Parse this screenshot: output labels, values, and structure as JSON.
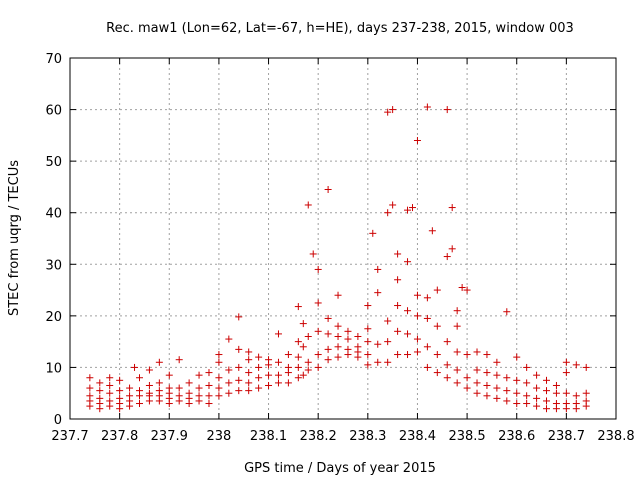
{
  "chart_data": {
    "type": "scatter",
    "title": "Rec. maw1 (Lon=62, Lat=-67, h=HE), days 237-238, 2015, window 003",
    "xlabel": "GPS time / Days of year 2015",
    "ylabel": "STEC from uqrg / TECUs",
    "xlim": [
      237.7,
      238.8
    ],
    "ylim": [
      0,
      70
    ],
    "x_ticks": [
      "237.7",
      "237.8",
      "237.9",
      "238",
      "238.1",
      "238.2",
      "238.3",
      "238.4",
      "238.5",
      "238.6",
      "238.7",
      "238.8"
    ],
    "y_ticks": [
      "0",
      "10",
      "20",
      "30",
      "40",
      "50",
      "60",
      "70"
    ],
    "grid": true,
    "marker": "+",
    "color": "#cc0000",
    "points": [
      [
        237.74,
        2.5
      ],
      [
        237.74,
        3.5
      ],
      [
        237.74,
        4.5
      ],
      [
        237.74,
        6.0
      ],
      [
        237.74,
        8.0
      ],
      [
        237.76,
        2.0
      ],
      [
        237.76,
        3.0
      ],
      [
        237.76,
        4.0
      ],
      [
        237.76,
        5.5
      ],
      [
        237.76,
        7.0
      ],
      [
        237.78,
        2.5
      ],
      [
        237.78,
        3.5
      ],
      [
        237.78,
        5.0
      ],
      [
        237.78,
        6.5
      ],
      [
        237.78,
        8.0
      ],
      [
        237.8,
        2.0
      ],
      [
        237.8,
        3.0
      ],
      [
        237.8,
        4.0
      ],
      [
        237.8,
        5.5
      ],
      [
        237.8,
        7.5
      ],
      [
        237.82,
        2.5
      ],
      [
        237.82,
        3.5
      ],
      [
        237.82,
        4.5
      ],
      [
        237.82,
        6.0
      ],
      [
        237.83,
        10.0
      ],
      [
        237.84,
        3.0
      ],
      [
        237.84,
        4.5
      ],
      [
        237.84,
        5.5
      ],
      [
        237.84,
        8.0
      ],
      [
        237.86,
        3.5
      ],
      [
        237.86,
        4.5
      ],
      [
        237.86,
        5.0
      ],
      [
        237.86,
        6.5
      ],
      [
        237.86,
        9.5
      ],
      [
        237.88,
        3.5
      ],
      [
        237.88,
        4.5
      ],
      [
        237.88,
        5.5
      ],
      [
        237.88,
        7.0
      ],
      [
        237.88,
        11.0
      ],
      [
        237.9,
        3.0
      ],
      [
        237.9,
        4.0
      ],
      [
        237.9,
        5.0
      ],
      [
        237.9,
        6.0
      ],
      [
        237.9,
        8.5
      ],
      [
        237.92,
        3.5
      ],
      [
        237.92,
        4.5
      ],
      [
        237.92,
        6.0
      ],
      [
        237.92,
        11.5
      ],
      [
        237.94,
        3.0
      ],
      [
        237.94,
        4.0
      ],
      [
        237.94,
        5.0
      ],
      [
        237.94,
        7.0
      ],
      [
        237.96,
        3.5
      ],
      [
        237.96,
        4.5
      ],
      [
        237.96,
        6.0
      ],
      [
        237.96,
        8.5
      ],
      [
        237.98,
        3.0
      ],
      [
        237.98,
        4.5
      ],
      [
        237.98,
        6.5
      ],
      [
        237.98,
        9.0
      ],
      [
        238.0,
        4.5
      ],
      [
        238.0,
        6.0
      ],
      [
        238.0,
        8.0
      ],
      [
        238.0,
        11.0
      ],
      [
        238.0,
        12.5
      ],
      [
        238.02,
        5.0
      ],
      [
        238.02,
        7.0
      ],
      [
        238.02,
        9.5
      ],
      [
        238.02,
        15.5
      ],
      [
        238.04,
        5.5
      ],
      [
        238.04,
        7.5
      ],
      [
        238.04,
        10.0
      ],
      [
        238.04,
        13.5
      ],
      [
        238.04,
        19.8
      ],
      [
        238.06,
        5.5
      ],
      [
        238.06,
        7.0
      ],
      [
        238.06,
        9.0
      ],
      [
        238.06,
        11.5
      ],
      [
        238.06,
        13.0
      ],
      [
        238.08,
        6.0
      ],
      [
        238.08,
        8.0
      ],
      [
        238.08,
        10.0
      ],
      [
        238.08,
        12.0
      ],
      [
        238.1,
        6.5
      ],
      [
        238.1,
        8.5
      ],
      [
        238.1,
        10.5
      ],
      [
        238.1,
        11.5
      ],
      [
        238.12,
        7.0
      ],
      [
        238.12,
        8.5
      ],
      [
        238.12,
        11.0
      ],
      [
        238.12,
        16.5
      ],
      [
        238.14,
        7.0
      ],
      [
        238.14,
        9.0
      ],
      [
        238.14,
        10.0
      ],
      [
        238.14,
        12.5
      ],
      [
        238.16,
        8.0
      ],
      [
        238.16,
        10.0
      ],
      [
        238.16,
        12.0
      ],
      [
        238.16,
        15.0
      ],
      [
        238.16,
        21.8
      ],
      [
        238.17,
        8.5
      ],
      [
        238.17,
        14.0
      ],
      [
        238.17,
        18.5
      ],
      [
        238.18,
        41.5
      ],
      [
        238.18,
        9.5
      ],
      [
        238.18,
        11.0
      ],
      [
        238.18,
        16.0
      ],
      [
        238.19,
        32.0
      ],
      [
        238.2,
        10.0
      ],
      [
        238.2,
        12.5
      ],
      [
        238.2,
        17.0
      ],
      [
        238.2,
        22.5
      ],
      [
        238.2,
        29.0
      ],
      [
        238.22,
        11.5
      ],
      [
        238.22,
        13.5
      ],
      [
        238.22,
        16.5
      ],
      [
        238.22,
        19.5
      ],
      [
        238.22,
        44.5
      ],
      [
        238.24,
        12.0
      ],
      [
        238.24,
        14.0
      ],
      [
        238.24,
        16.0
      ],
      [
        238.24,
        18.0
      ],
      [
        238.24,
        24.0
      ],
      [
        238.26,
        12.5
      ],
      [
        238.26,
        13.5
      ],
      [
        238.26,
        15.5
      ],
      [
        238.26,
        17.0
      ],
      [
        238.28,
        12.0
      ],
      [
        238.28,
        13.0
      ],
      [
        238.28,
        14.0
      ],
      [
        238.28,
        16.0
      ],
      [
        238.3,
        10.5
      ],
      [
        238.3,
        12.5
      ],
      [
        238.3,
        15.0
      ],
      [
        238.3,
        17.5
      ],
      [
        238.3,
        22.0
      ],
      [
        238.31,
        36.0
      ],
      [
        238.32,
        11.0
      ],
      [
        238.32,
        14.5
      ],
      [
        238.32,
        24.5
      ],
      [
        238.32,
        29.0
      ],
      [
        238.34,
        11.0
      ],
      [
        238.34,
        15.0
      ],
      [
        238.34,
        19.0
      ],
      [
        238.34,
        40.0
      ],
      [
        238.34,
        59.5
      ],
      [
        238.35,
        60.0
      ],
      [
        238.35,
        41.5
      ],
      [
        238.36,
        12.5
      ],
      [
        238.36,
        17.0
      ],
      [
        238.36,
        22.0
      ],
      [
        238.36,
        27.0
      ],
      [
        238.36,
        32.0
      ],
      [
        238.38,
        12.5
      ],
      [
        238.38,
        16.5
      ],
      [
        238.38,
        21.0
      ],
      [
        238.38,
        30.5
      ],
      [
        238.38,
        40.5
      ],
      [
        238.39,
        41.0
      ],
      [
        238.4,
        13.0
      ],
      [
        238.4,
        15.5
      ],
      [
        238.4,
        20.0
      ],
      [
        238.4,
        24.0
      ],
      [
        238.4,
        54.0
      ],
      [
        238.42,
        10.0
      ],
      [
        238.42,
        14.0
      ],
      [
        238.42,
        19.5
      ],
      [
        238.42,
        23.5
      ],
      [
        238.42,
        60.5
      ],
      [
        238.43,
        36.5
      ],
      [
        238.44,
        9.0
      ],
      [
        238.44,
        12.5
      ],
      [
        238.44,
        18.0
      ],
      [
        238.44,
        25.0
      ],
      [
        238.46,
        8.0
      ],
      [
        238.46,
        10.5
      ],
      [
        238.46,
        15.0
      ],
      [
        238.46,
        31.5
      ],
      [
        238.46,
        60.0
      ],
      [
        238.47,
        33.0
      ],
      [
        238.47,
        41.0
      ],
      [
        238.48,
        7.0
      ],
      [
        238.48,
        9.5
      ],
      [
        238.48,
        13.0
      ],
      [
        238.48,
        18.0
      ],
      [
        238.48,
        21.0
      ],
      [
        238.49,
        25.5
      ],
      [
        238.5,
        6.0
      ],
      [
        238.5,
        8.0
      ],
      [
        238.5,
        12.5
      ],
      [
        238.5,
        25.0
      ],
      [
        238.52,
        5.0
      ],
      [
        238.52,
        7.0
      ],
      [
        238.52,
        9.5
      ],
      [
        238.52,
        13.0
      ],
      [
        238.54,
        4.5
      ],
      [
        238.54,
        6.5
      ],
      [
        238.54,
        9.0
      ],
      [
        238.54,
        12.5
      ],
      [
        238.56,
        4.0
      ],
      [
        238.56,
        6.0
      ],
      [
        238.56,
        8.5
      ],
      [
        238.56,
        11.0
      ],
      [
        238.58,
        3.5
      ],
      [
        238.58,
        5.5
      ],
      [
        238.58,
        8.0
      ],
      [
        238.58,
        20.8
      ],
      [
        238.6,
        3.0
      ],
      [
        238.6,
        5.0
      ],
      [
        238.6,
        7.5
      ],
      [
        238.6,
        12.0
      ],
      [
        238.62,
        3.0
      ],
      [
        238.62,
        4.5
      ],
      [
        238.62,
        7.0
      ],
      [
        238.62,
        10.0
      ],
      [
        238.64,
        2.5
      ],
      [
        238.64,
        4.0
      ],
      [
        238.64,
        6.0
      ],
      [
        238.64,
        8.5
      ],
      [
        238.66,
        2.0
      ],
      [
        238.66,
        3.5
      ],
      [
        238.66,
        5.5
      ],
      [
        238.66,
        7.5
      ],
      [
        238.68,
        2.0
      ],
      [
        238.68,
        3.0
      ],
      [
        238.68,
        5.0
      ],
      [
        238.68,
        6.5
      ],
      [
        238.7,
        2.0
      ],
      [
        238.7,
        3.0
      ],
      [
        238.7,
        5.0
      ],
      [
        238.7,
        9.0
      ],
      [
        238.7,
        11.0
      ],
      [
        238.72,
        2.0
      ],
      [
        238.72,
        3.0
      ],
      [
        238.72,
        4.5
      ],
      [
        238.72,
        10.5
      ],
      [
        238.74,
        2.5
      ],
      [
        238.74,
        3.5
      ],
      [
        238.74,
        5.0
      ],
      [
        238.74,
        10.0
      ]
    ]
  }
}
